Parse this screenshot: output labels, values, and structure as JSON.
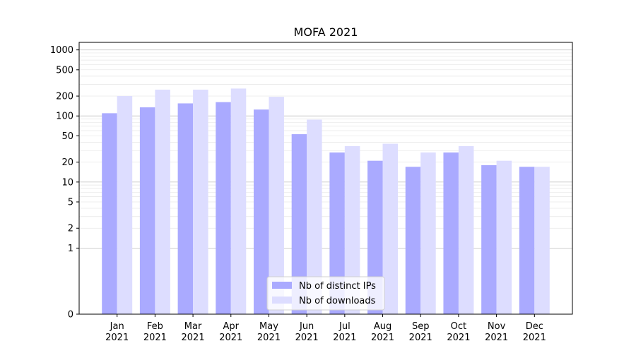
{
  "chart_data": {
    "type": "bar",
    "title": "MOFA 2021",
    "xlabel": "",
    "ylabel": "",
    "yscale": "symlog",
    "ylim": [
      0,
      1300
    ],
    "grid": "y",
    "legend_position": "bottom-center",
    "categories": [
      [
        "Jan",
        "2021"
      ],
      [
        "Feb",
        "2021"
      ],
      [
        "Mar",
        "2021"
      ],
      [
        "Apr",
        "2021"
      ],
      [
        "May",
        "2021"
      ],
      [
        "Jun",
        "2021"
      ],
      [
        "Jul",
        "2021"
      ],
      [
        "Aug",
        "2021"
      ],
      [
        "Sep",
        "2021"
      ],
      [
        "Oct",
        "2021"
      ],
      [
        "Nov",
        "2021"
      ],
      [
        "Dec",
        "2021"
      ]
    ],
    "yticks": [
      {
        "value": 0,
        "label": "0"
      },
      {
        "value": 1,
        "label": "1"
      },
      {
        "value": 2,
        "label": "2"
      },
      {
        "value": 5,
        "label": "5"
      },
      {
        "value": 10,
        "label": "10"
      },
      {
        "value": 20,
        "label": "20"
      },
      {
        "value": 50,
        "label": "50"
      },
      {
        "value": 100,
        "label": "100"
      },
      {
        "value": 200,
        "label": "200"
      },
      {
        "value": 500,
        "label": "500"
      },
      {
        "value": 1000,
        "label": "1000"
      }
    ],
    "series": [
      {
        "name": "Nb of distinct IPs",
        "color": "#aaaaff",
        "values": [
          110,
          135,
          155,
          162,
          125,
          53,
          28,
          21,
          17,
          28,
          18,
          17
        ]
      },
      {
        "name": "Nb of downloads",
        "color": "#ddddff",
        "values": [
          200,
          250,
          250,
          260,
          195,
          88,
          35,
          38,
          28,
          35,
          21,
          17
        ]
      }
    ]
  }
}
